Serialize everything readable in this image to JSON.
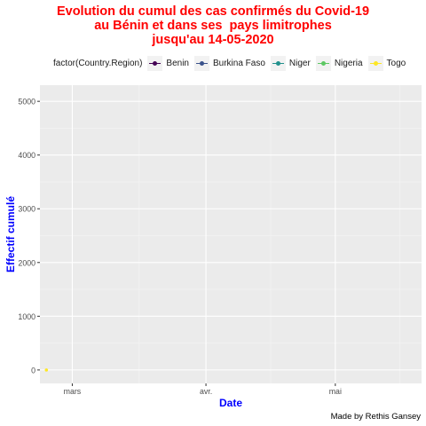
{
  "chart_data": {
    "type": "line",
    "title_lines": [
      "Evolution du cumul des cas confirmés du Covid-19",
      "au Bénin et dans ses  pays limitrophes",
      "jusqu'au 14-05-2020"
    ],
    "xlabel": "Date",
    "ylabel": "Effectif cumulé",
    "x_ticks": [
      "mars",
      "avr.",
      "mai"
    ],
    "y_ticks": [
      0,
      1000,
      2000,
      3000,
      4000,
      5000
    ],
    "ylim": [
      -250,
      5300
    ],
    "legend_title": "factor(Country.Region)",
    "legend_position": "top",
    "grid": true,
    "series": [
      {
        "name": "Benin",
        "color": "#440154",
        "x": [],
        "y": []
      },
      {
        "name": "Burkina Faso",
        "color": "#3b528b",
        "x": [],
        "y": []
      },
      {
        "name": "Niger",
        "color": "#21908c",
        "x": [],
        "y": []
      },
      {
        "name": "Nigeria",
        "color": "#5dc863",
        "x": [],
        "y": []
      },
      {
        "name": "Togo",
        "color": "#fde725",
        "x": [
          "2020-02-24"
        ],
        "y": [
          0
        ]
      }
    ],
    "caption": "Made by Rethis Gansey"
  }
}
